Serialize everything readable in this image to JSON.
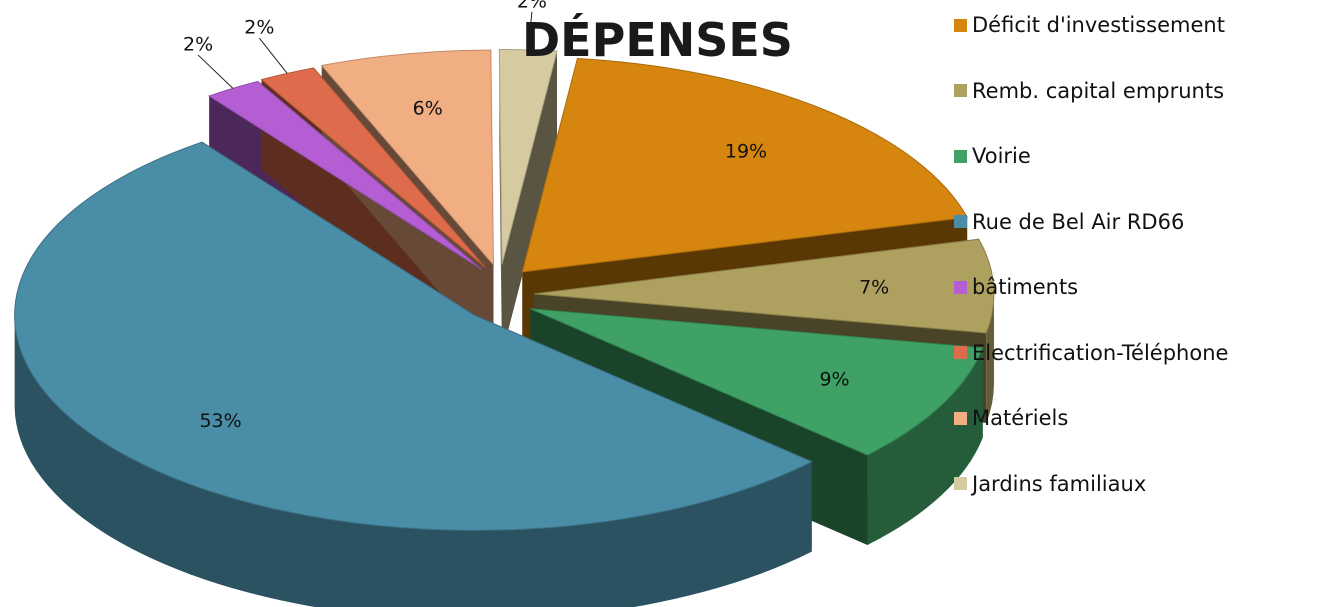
{
  "chart_data": {
    "type": "pie",
    "title": "DÉPENSES",
    "slices": [
      {
        "label": "Déficit d'investissement",
        "value": 19,
        "value_label": "19%",
        "color": "#D6860F"
      },
      {
        "label": "Remb. capital emprunts",
        "value": 7,
        "value_label": "7%",
        "color": "#AEA05E"
      },
      {
        "label": "Voirie",
        "value": 9,
        "value_label": "9%",
        "color": "#3FA165"
      },
      {
        "label": "Rue de Bel Air RD66",
        "value": 53,
        "value_label": "53%",
        "color": "#4A8DA6"
      },
      {
        "label": "bâtiments",
        "value": 2,
        "value_label": "2%",
        "color": "#B55ED4"
      },
      {
        "label": "Electrification-Téléphone",
        "value": 2,
        "value_label": "2%",
        "color": "#DE6B4C"
      },
      {
        "label": "Matériels",
        "value": 6,
        "value_label": "6%",
        "color": "#F2AE83"
      },
      {
        "label": "Jardins familiaux",
        "value": 2,
        "value_label": "2%",
        "color": "#D6CBA0"
      }
    ],
    "legend_position": "right",
    "style": "3d-exploded"
  }
}
